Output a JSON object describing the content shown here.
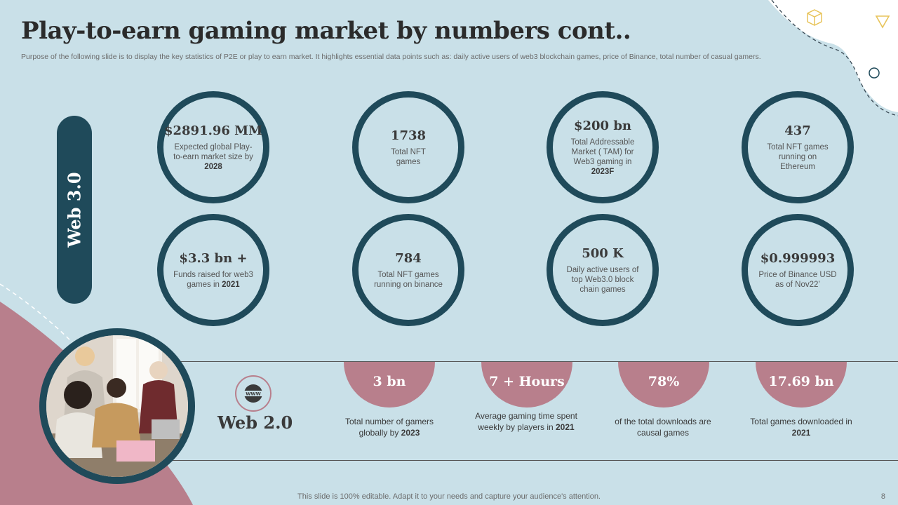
{
  "title": "Play-to-earn gaming market by numbers cont..",
  "subtitle": "Purpose of the following slide is to display the key statistics of P2E or play to  earn market. It highlights essential data points such as: daily active  users of web3 blockchain games, price of Binance, total number of casual gamers.",
  "web3_label": "Web 3.0",
  "web3_stats": [
    {
      "value": "$2891.96 MM",
      "desc": "Expected global Play-to-earn market size by ",
      "bold": "2028"
    },
    {
      "value": "1738",
      "desc": "Total NFT games",
      "bold": ""
    },
    {
      "value": "$200 bn",
      "desc": "Total Addressable Market ( TAM)  for Web3 gaming in ",
      "bold": "2023F"
    },
    {
      "value": "437",
      "desc": "Total NFT games running on Ethereum",
      "bold": ""
    },
    {
      "value": "$3.3 bn +",
      "desc": "Funds raised for web3 games in ",
      "bold": "2021"
    },
    {
      "value": "784",
      "desc": "Total NFT games running on binance",
      "bold": ""
    },
    {
      "value": "500 K",
      "desc": "Daily active users of top Web3.0 block chain games",
      "bold": ""
    },
    {
      "value": "$0.999993",
      "desc": "Price of Binance USD as of Nov22’",
      "bold": ""
    }
  ],
  "web2_label": "Web 2.0",
  "web2_icon_text": "WWW",
  "web2_stats": [
    {
      "value": "3 bn",
      "desc": "Total number of gamers globally  by ",
      "bold": "2023"
    },
    {
      "value": "7 + Hours",
      "desc": "Average  gaming time spent weekly by players in ",
      "bold": "2021"
    },
    {
      "value": "78%",
      "desc": "of the total downloads are causal games",
      "bold": ""
    },
    {
      "value": "17.69 bn",
      "desc": "Total games downloaded in ",
      "bold": "2021"
    }
  ],
  "footer": "This slide is 100% editable. Adapt it to your needs and capture your audience's attention.",
  "page_number": "8",
  "colors": {
    "background": "#c9e0e8",
    "dark_teal": "#1f4a5a",
    "rose": "#b87f8c"
  }
}
